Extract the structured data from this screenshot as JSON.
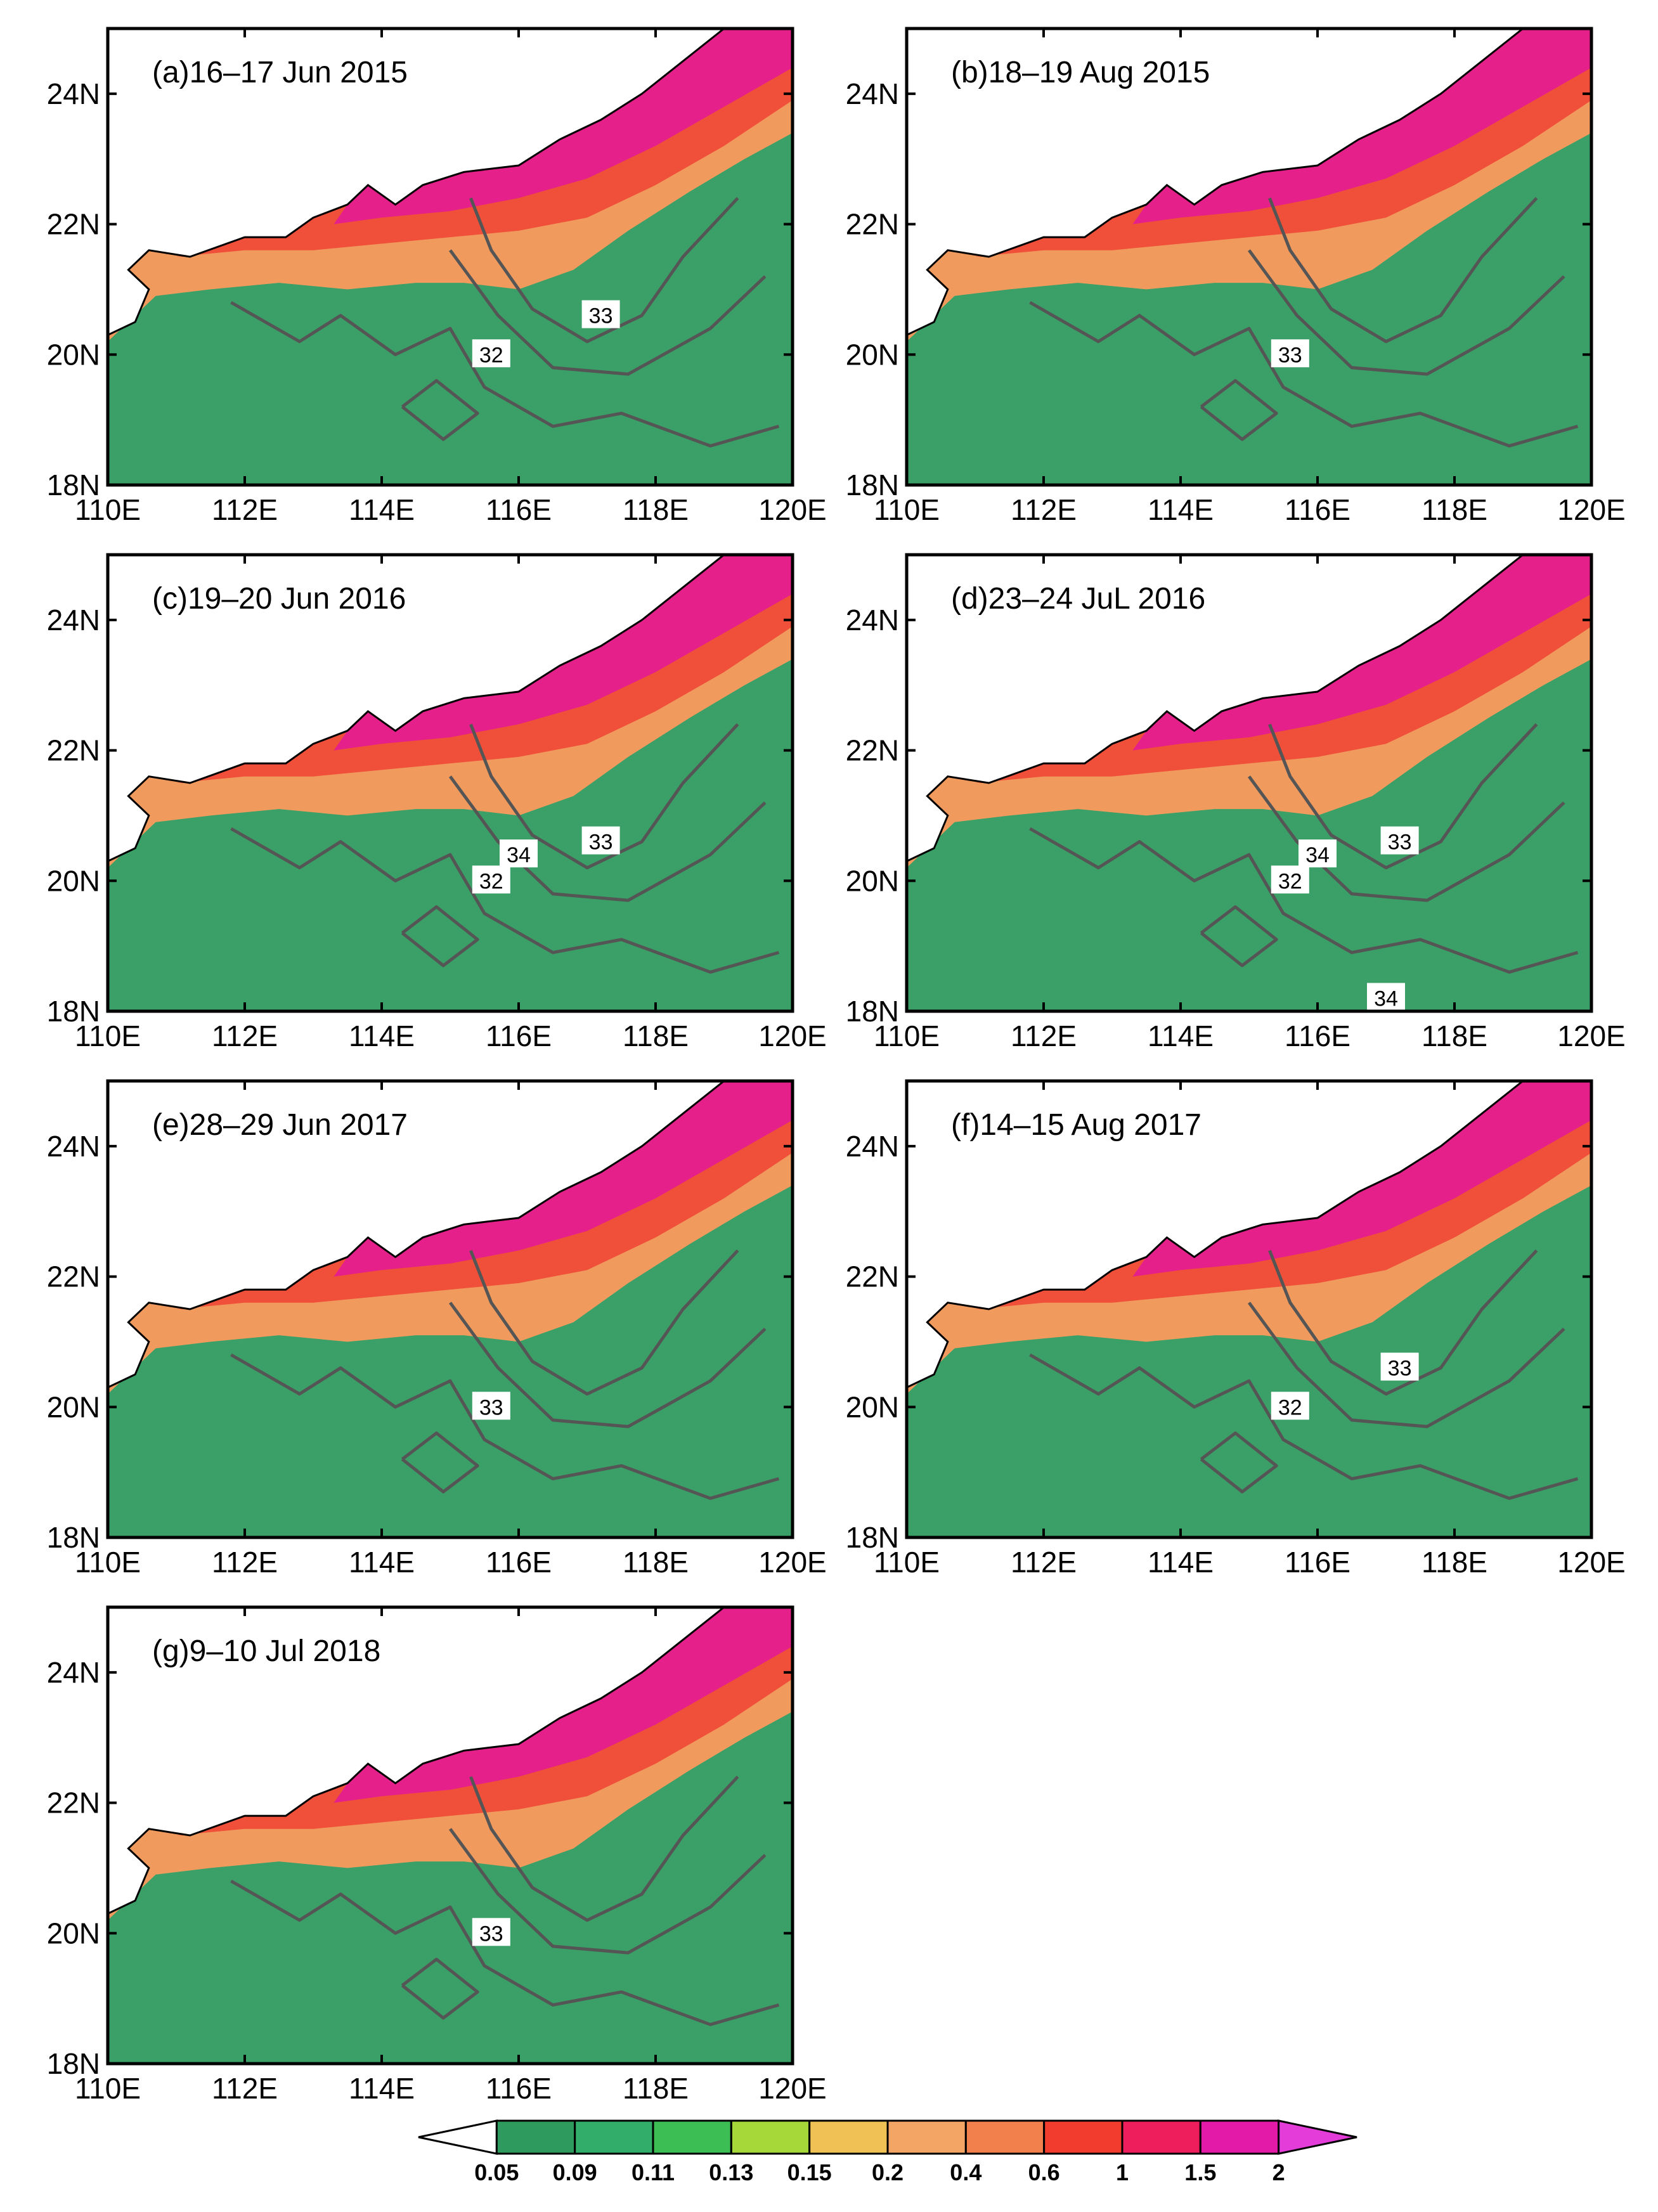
{
  "panels": [
    {
      "id": "a",
      "title": "(a)16–17 Jun 2015",
      "contour_labels": [
        "32",
        "33"
      ]
    },
    {
      "id": "b",
      "title": "(b)18–19 Aug 2015",
      "contour_labels": [
        "33"
      ]
    },
    {
      "id": "c",
      "title": "(c)19–20 Jun 2016",
      "contour_labels": [
        "32",
        "33",
        "34"
      ]
    },
    {
      "id": "d",
      "title": "(d)23–24 JuL 2016",
      "contour_labels": [
        "32",
        "33",
        "34",
        "34"
      ]
    },
    {
      "id": "e",
      "title": "(e)28–29 Jun 2017",
      "contour_labels": [
        "33"
      ]
    },
    {
      "id": "f",
      "title": "(f)14–15 Aug 2017",
      "contour_labels": [
        "32",
        "33"
      ]
    },
    {
      "id": "g",
      "title": "(g)9–10 Jul 2018",
      "contour_labels": [
        "33"
      ]
    }
  ],
  "axes": {
    "x_ticks": [
      "110E",
      "112E",
      "114E",
      "116E",
      "118E",
      "120E"
    ],
    "y_ticks": [
      "18N",
      "20N",
      "22N",
      "24N"
    ]
  },
  "colorbar": {
    "labels": [
      "0.05",
      "0.09",
      "0.11",
      "0.13",
      "0.15",
      "0.2",
      "0.4",
      "0.6",
      "1",
      "1.5",
      "2"
    ],
    "colors": [
      "#ffffff",
      "#2f9a5d",
      "#33ad6a",
      "#3cbe55",
      "#a6d83a",
      "#f0c255",
      "#f3a565",
      "#f2804d",
      "#f23c2e",
      "#ee1d5c",
      "#e31aa7",
      "#e43cd8"
    ]
  },
  "colors": {
    "ocean_green": "#3aa067",
    "coastal_orange": "#f19a5e",
    "coastal_red": "#f0503a",
    "coastal_magenta": "#e6208a",
    "contour": "#555555",
    "coast": "#000000"
  }
}
